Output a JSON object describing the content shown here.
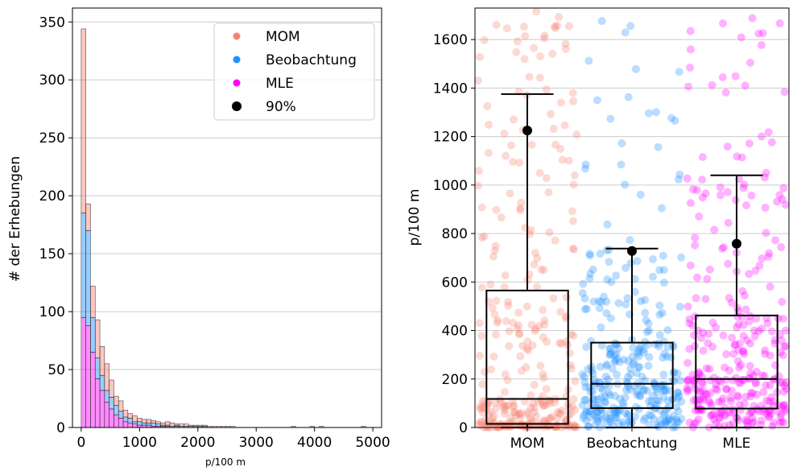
{
  "chart_data": [
    {
      "type": "bar",
      "stacked": true,
      "xlabel": "p/100 m",
      "ylabel": "# der Erhebungen",
      "xlim": [
        -150,
        5150
      ],
      "ylim": [
        0,
        362
      ],
      "xticks": [
        0,
        1000,
        2000,
        3000,
        4000,
        5000
      ],
      "yticks": [
        0,
        50,
        100,
        150,
        200,
        250,
        300,
        350
      ],
      "grid": "y",
      "legend_position": "top-right",
      "legend": [
        {
          "label": "MOM",
          "color": "#fa8072",
          "marker": "point"
        },
        {
          "label": "Beobachtung",
          "color": "#1e90ff",
          "marker": "point"
        },
        {
          "label": "MLE",
          "color": "#ff00ff",
          "marker": "point"
        },
        {
          "label": "90%",
          "color": "#000000",
          "marker": "dot"
        }
      ],
      "bin_width": 80,
      "bin_starts": [
        0,
        80,
        160,
        240,
        320,
        400,
        480,
        560,
        640,
        720,
        800,
        880,
        960,
        1040,
        1120,
        1200,
        1280,
        1360,
        1440,
        1520,
        1600,
        1680,
        1760,
        1840,
        1920,
        2000,
        2080,
        2160,
        2240,
        2320,
        2400,
        2480,
        2560,
        2640,
        2720,
        2800,
        2880,
        2960,
        3040,
        3120,
        3200,
        3280,
        3360,
        3440,
        3520,
        3600,
        3680,
        3760,
        3840,
        3920,
        4000,
        4080,
        4160,
        4240,
        4320,
        4400,
        4480,
        4560,
        4640,
        4720,
        4800
      ],
      "series": [
        {
          "name": "MLE",
          "color": "#ff00ff",
          "values": [
            95,
            88,
            65,
            42,
            32,
            22,
            16,
            11,
            8,
            5,
            4,
            3,
            2,
            2,
            2,
            1,
            1,
            1,
            1,
            0,
            1,
            0,
            0,
            0,
            0,
            0,
            0,
            0,
            0,
            0,
            0,
            0,
            0,
            0,
            0,
            0,
            0,
            0,
            0,
            0,
            0,
            0,
            0,
            0,
            0,
            0,
            0,
            0,
            0,
            0,
            0,
            0,
            0,
            0,
            0,
            0,
            0,
            0,
            0,
            0,
            0
          ]
        },
        {
          "name": "Beobachtung",
          "color": "#1e90ff",
          "values": [
            90,
            82,
            30,
            18,
            13,
            10,
            10,
            8,
            6,
            4,
            4,
            2,
            3,
            2,
            2,
            3,
            2,
            1,
            1,
            1,
            1,
            1,
            1,
            1,
            1,
            1,
            1,
            0,
            0,
            0,
            0,
            0,
            0,
            0,
            0,
            0,
            0,
            0,
            0,
            0,
            0,
            0,
            0,
            0,
            0,
            1,
            0,
            0,
            0,
            1,
            0,
            1,
            0,
            0,
            0,
            0,
            0,
            0,
            0,
            0,
            1
          ]
        },
        {
          "name": "MOM",
          "color": "#fa8072",
          "values": [
            159,
            23,
            27,
            33,
            25,
            23,
            15,
            8,
            9,
            6,
            4,
            5,
            3,
            3,
            3,
            2,
            2,
            2,
            3,
            3,
            1,
            2,
            2,
            1,
            1,
            1,
            1,
            1,
            1,
            1,
            1,
            1,
            1,
            0,
            0,
            0,
            0,
            0,
            0,
            0,
            0,
            0,
            0,
            0,
            0,
            0,
            0,
            0,
            0,
            0,
            0,
            0,
            0,
            0,
            0,
            0,
            0,
            0,
            0,
            0,
            0
          ]
        }
      ]
    },
    {
      "type": "box",
      "ylabel": "p/100 m",
      "categories": [
        "MOM",
        "Beobachtung",
        "MLE"
      ],
      "ylim": [
        0,
        1730
      ],
      "yticks": [
        0,
        200,
        400,
        600,
        800,
        1000,
        1200,
        1400,
        1600
      ],
      "grid": "y",
      "boxes": [
        {
          "name": "MOM",
          "color": "#fa8072",
          "whisker_low": 0,
          "q1": 15,
          "median": 118,
          "q3": 565,
          "whisker_high": 1375,
          "p90": 1225
        },
        {
          "name": "Beobachtung",
          "color": "#1e90ff",
          "whisker_low": 0,
          "q1": 80,
          "median": 180,
          "q3": 350,
          "whisker_high": 738,
          "p90": 728
        },
        {
          "name": "MLE",
          "color": "#ff00ff",
          "whisker_low": 0,
          "q1": 78,
          "median": 200,
          "q3": 462,
          "whisker_high": 1040,
          "p90": 758
        }
      ]
    }
  ]
}
